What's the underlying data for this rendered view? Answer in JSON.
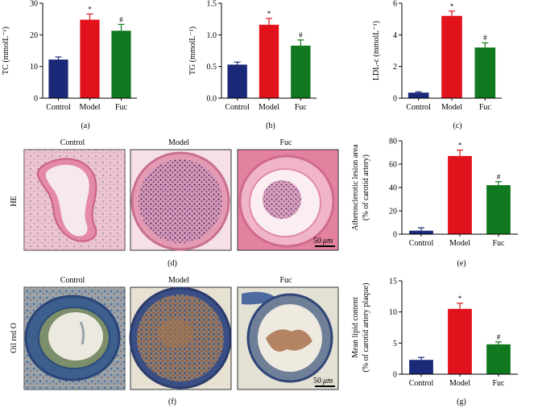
{
  "figure": {
    "panel_letters": [
      "(a)",
      "(b)",
      "(c)",
      "(d)",
      "(e)",
      "(f)",
      "(g)"
    ],
    "colors": {
      "Control": "#1b2a78",
      "Model": "#e1121c",
      "Fuc": "#10791f"
    },
    "micrographs": {
      "he_row_label": "HE",
      "oil_row_label": "Oil red O",
      "titles": [
        "Control",
        "Model",
        "Fuc"
      ],
      "scale_bar_value": "50",
      "scale_bar_unit": "μm"
    }
  },
  "chart_data": [
    {
      "id": "a",
      "type": "bar",
      "title": "",
      "categories": [
        "Control",
        "Model",
        "Fuc"
      ],
      "values": [
        12.2,
        24.8,
        21.3
      ],
      "errors": [
        0.8,
        1.8,
        2.0
      ],
      "significance": [
        "",
        "*",
        "#"
      ],
      "ylabel": "TC (mmolL⁻¹)",
      "ylim": [
        0,
        30
      ],
      "yticks": [
        0,
        10,
        20,
        30
      ],
      "ytick_labels": [
        "0",
        "10",
        "20",
        "30"
      ],
      "panel_label": "(a)"
    },
    {
      "id": "b",
      "type": "bar",
      "title": "",
      "categories": [
        "Control",
        "Model",
        "Fuc"
      ],
      "values": [
        0.53,
        1.16,
        0.83
      ],
      "errors": [
        0.04,
        0.1,
        0.09
      ],
      "significance": [
        "",
        "*",
        "#"
      ],
      "ylabel": "TG (mmolL⁻¹)",
      "ylim": [
        0,
        1.5
      ],
      "yticks": [
        0,
        0.5,
        1.0,
        1.5
      ],
      "ytick_labels": [
        "0.0",
        "0.5",
        "1.0",
        "1.5"
      ],
      "panel_label": "(b)"
    },
    {
      "id": "c",
      "type": "bar",
      "title": "",
      "categories": [
        "Control",
        "Model",
        "Fuc"
      ],
      "values": [
        0.35,
        5.2,
        3.2
      ],
      "errors": [
        0.05,
        0.3,
        0.3
      ],
      "significance": [
        "",
        "*",
        "#"
      ],
      "ylabel": "LDL-c (mmolL⁻¹)",
      "ylim": [
        0,
        6
      ],
      "yticks": [
        0,
        2,
        4,
        6
      ],
      "ytick_labels": [
        "0",
        "2",
        "4",
        "6"
      ],
      "panel_label": "(c)"
    },
    {
      "id": "e",
      "type": "bar",
      "title": "",
      "categories": [
        "Control",
        "Model",
        "Fuc"
      ],
      "values": [
        3,
        67,
        42
      ],
      "errors": [
        2.5,
        5,
        3
      ],
      "significance": [
        "",
        "*",
        "#"
      ],
      "ylabel": "Atherosclerotic lesion area",
      "ylabel2": "(% of carotid artery)",
      "ylim": [
        0,
        80
      ],
      "yticks": [
        0,
        20,
        40,
        60,
        80
      ],
      "ytick_labels": [
        "0",
        "20",
        "40",
        "60",
        "80"
      ],
      "panel_label": "(e)"
    },
    {
      "id": "g",
      "type": "bar",
      "title": "",
      "categories": [
        "Control",
        "Model",
        "Fuc"
      ],
      "values": [
        2.3,
        10.5,
        4.8
      ],
      "errors": [
        0.4,
        0.9,
        0.4
      ],
      "significance": [
        "",
        "*",
        "#"
      ],
      "ylabel": "Mean lipid content",
      "ylabel2": "(% of carotid artery plaque)",
      "ylim": [
        0,
        15
      ],
      "yticks": [
        0,
        5,
        10,
        15
      ],
      "ytick_labels": [
        "0",
        "5",
        "10",
        "15"
      ],
      "panel_label": "(g)"
    }
  ]
}
